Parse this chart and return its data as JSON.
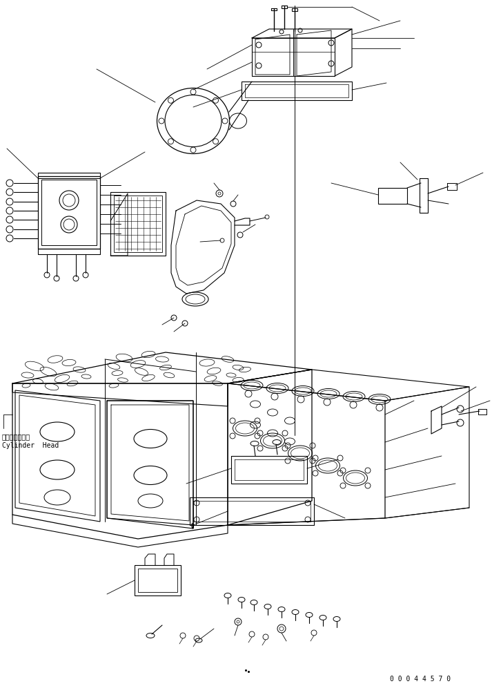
{
  "title": "",
  "background_color": "#ffffff",
  "line_color": "#000000",
  "text_color": "#000000",
  "label_japanese": "シリンダヘッド",
  "label_english": "Cylinder  Head",
  "part_number": "0 0 0 4 4 5 7 0",
  "fig_width": 7.13,
  "fig_height": 9.93,
  "dpi": 100
}
